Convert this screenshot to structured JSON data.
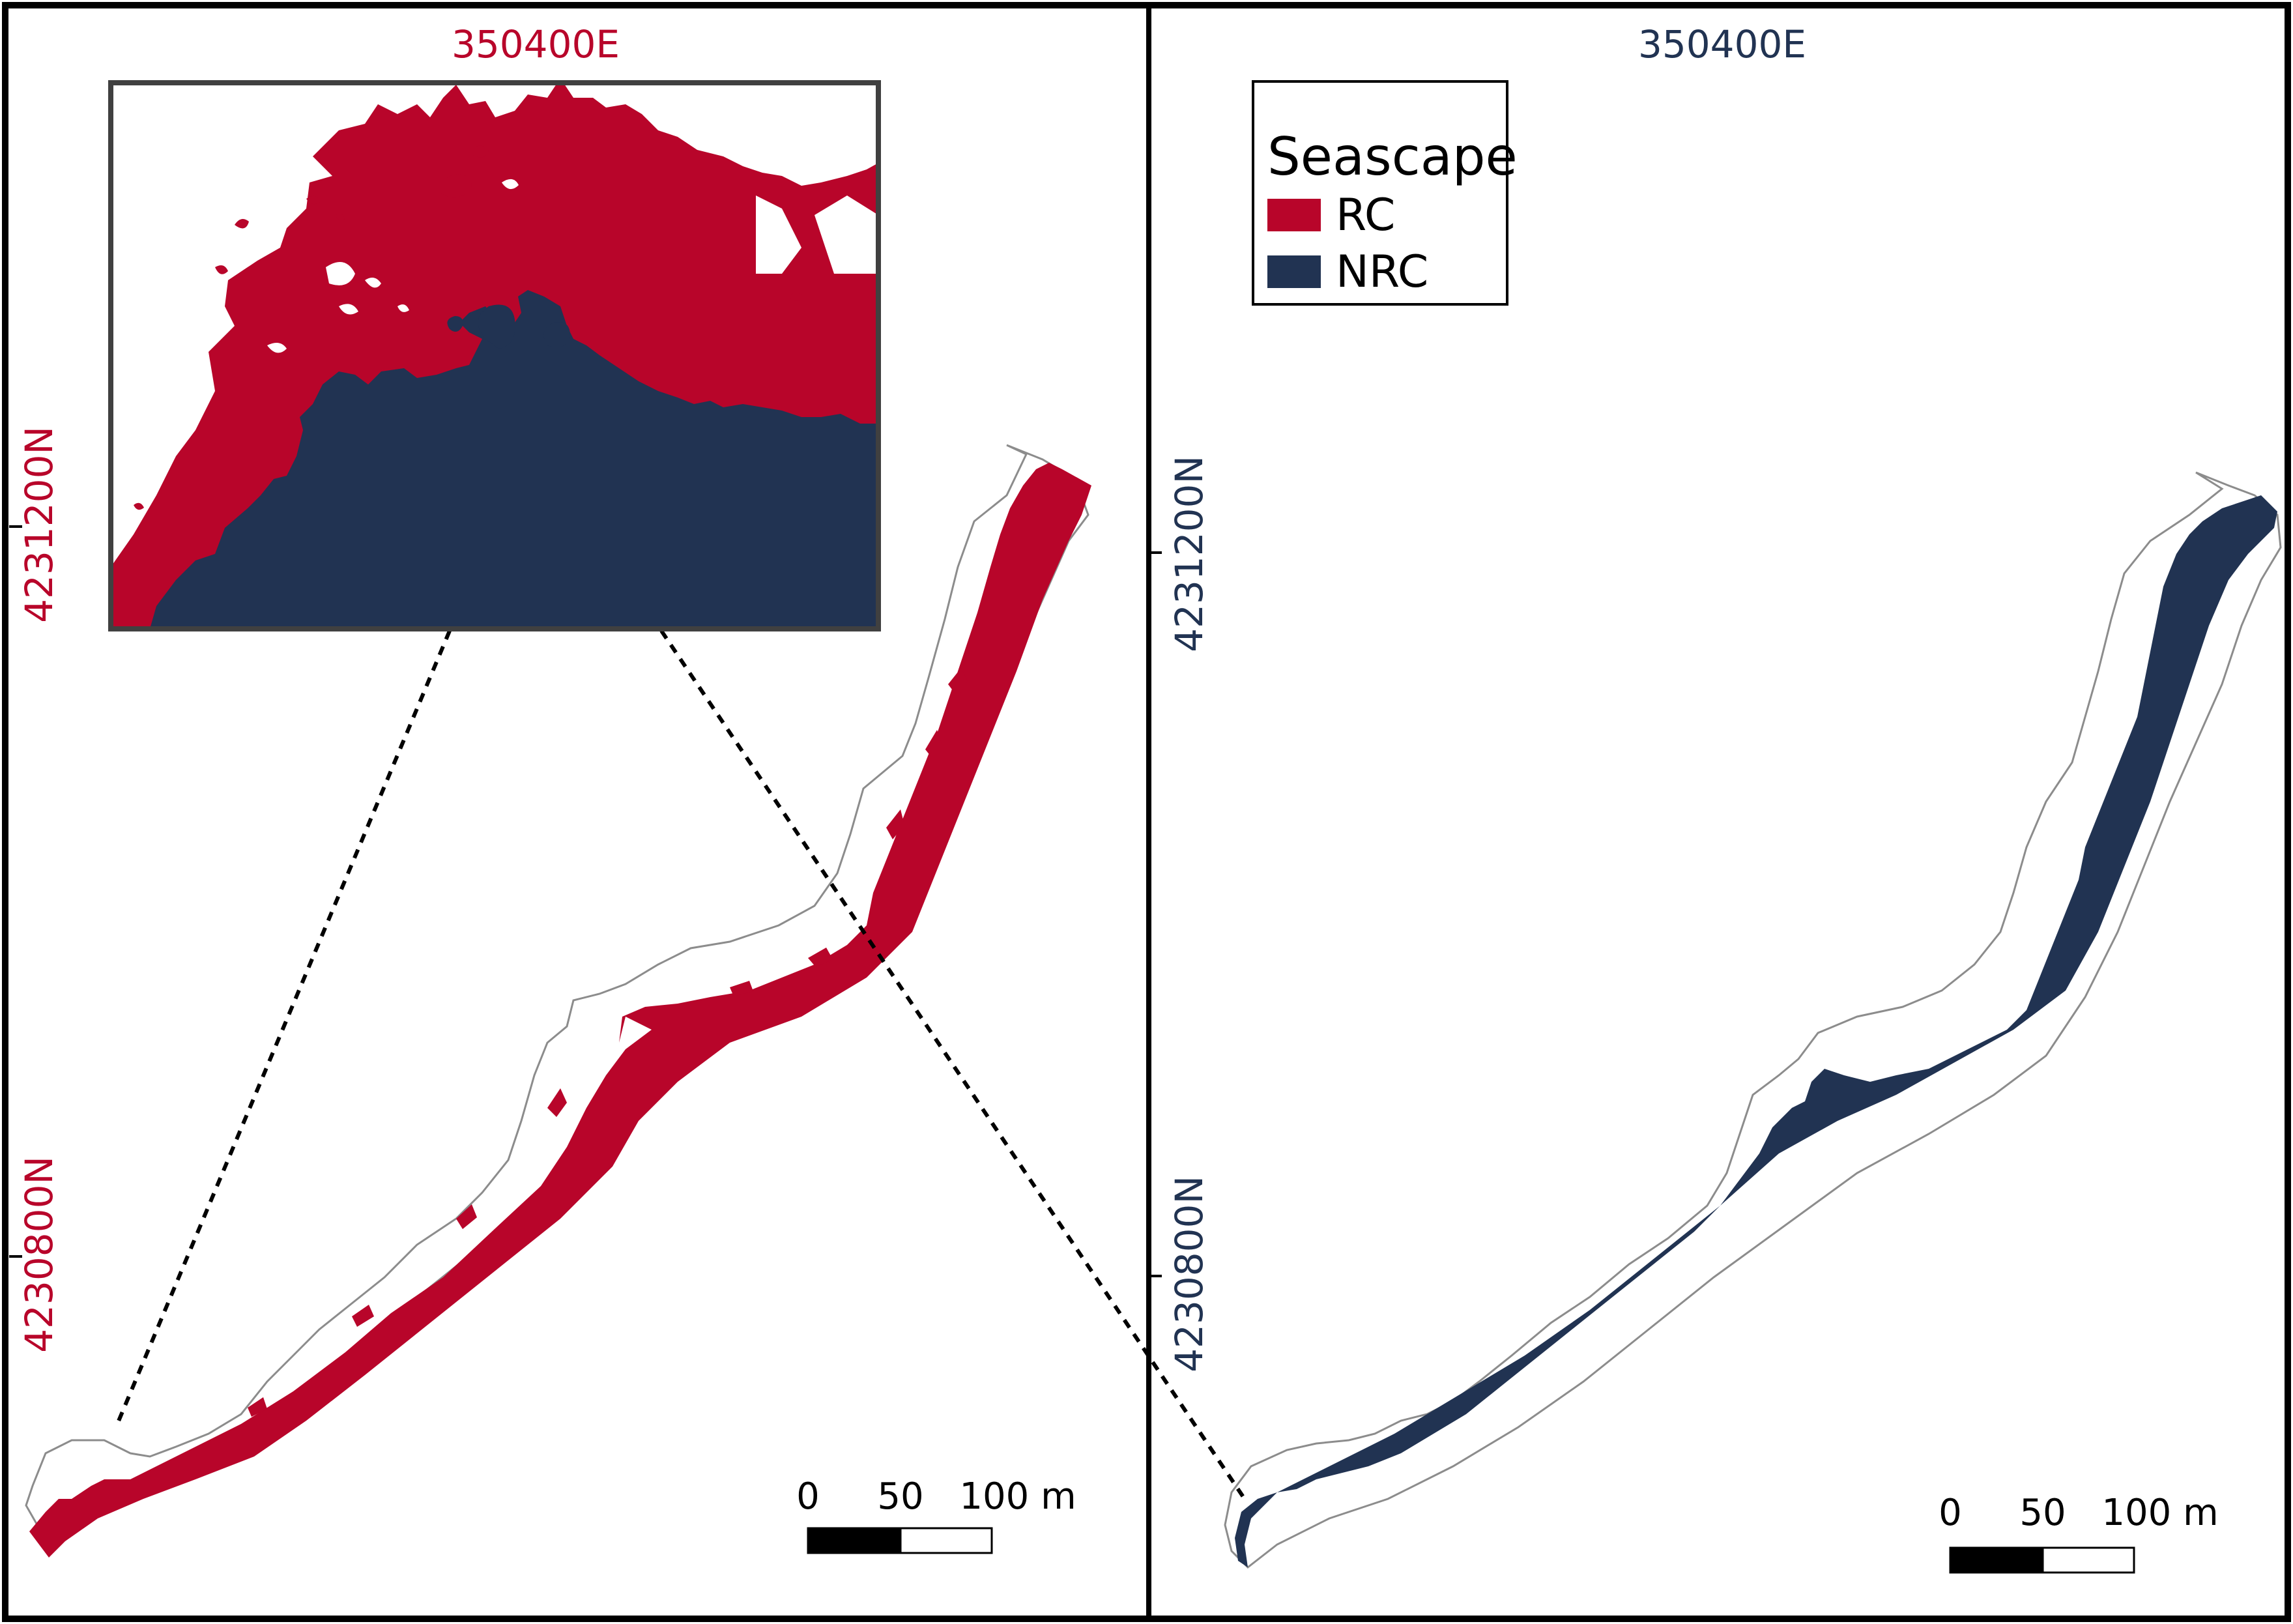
{
  "colors": {
    "rc": "#b8052a",
    "nrc": "#213352",
    "left_label": "#b8052a",
    "right_label": "#213352",
    "frame": "#000000",
    "outline": "#8c8c8c",
    "inset_frame": "#404040"
  },
  "left_panel": {
    "easting_label": "350400E",
    "northing_top": "4231200N",
    "northing_bottom": "4230800N",
    "scale_bar": {
      "ticks": [
        "0",
        "50",
        "100 m"
      ]
    },
    "inset": {
      "shown": true
    }
  },
  "right_panel": {
    "easting_label": "350400E",
    "northing_top": "4231200N",
    "northing_bottom": "4230800N",
    "scale_bar": {
      "ticks": [
        "0",
        "50",
        "100 m"
      ]
    }
  },
  "legend": {
    "title": "Seascape",
    "items": [
      {
        "label": "RC",
        "color": "#b8052a"
      },
      {
        "label": "NRC",
        "color": "#213352"
      }
    ]
  }
}
